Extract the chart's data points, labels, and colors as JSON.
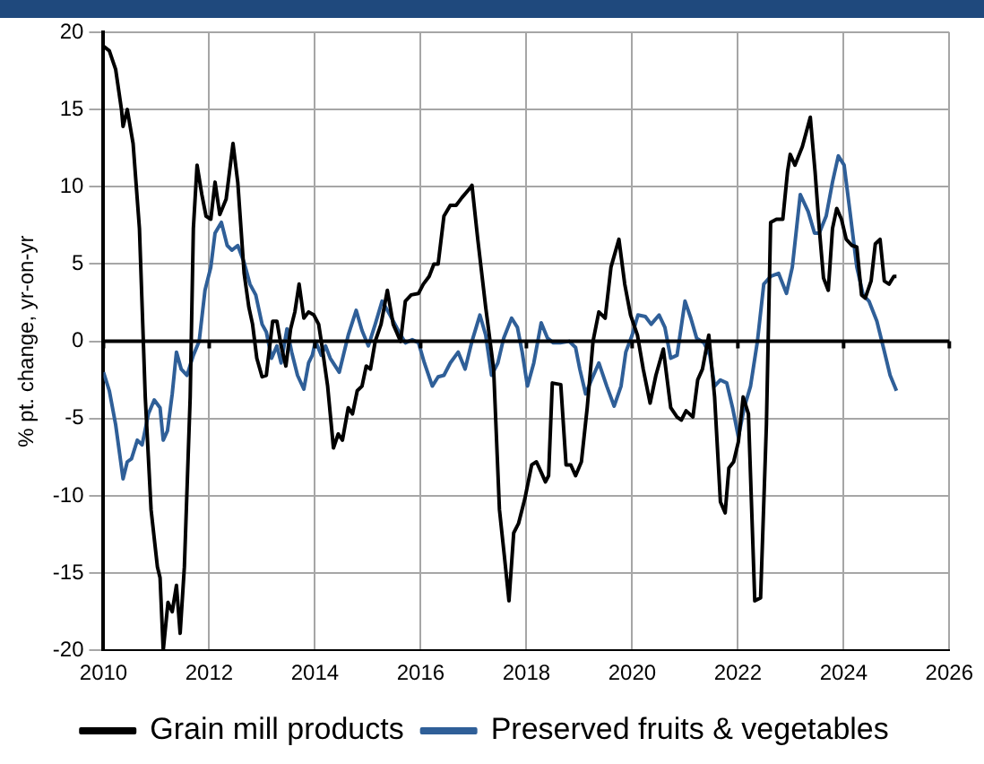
{
  "chart_data": {
    "type": "line",
    "ylabel": "% pt. change, yr-on-yr",
    "xlim": [
      2010,
      2026
    ],
    "xticks": [
      2010,
      2012,
      2014,
      2016,
      2018,
      2020,
      2022,
      2024,
      2026
    ],
    "ylim": [
      -20,
      20
    ],
    "yticks": [
      -20,
      -15,
      -10,
      -5,
      0,
      5,
      10,
      15,
      20
    ],
    "grid": true,
    "legend": "bottom",
    "line_style": "solid",
    "marker": "none",
    "ref_lines": [
      {
        "axis": "y",
        "value": 0,
        "color": "#000000"
      }
    ],
    "series": [
      {
        "name": "Grain mill products",
        "color": "#000000",
        "x": [
          2010.0,
          2010.11,
          2010.23,
          2010.34,
          2010.37,
          2010.45,
          2010.56,
          2010.68,
          2010.79,
          2010.9,
          2011.02,
          2011.07,
          2011.13,
          2011.22,
          2011.3,
          2011.38,
          2011.45,
          2011.53,
          2011.64,
          2011.7,
          2011.77,
          2011.86,
          2011.94,
          2012.03,
          2012.11,
          2012.2,
          2012.32,
          2012.45,
          2012.54,
          2012.66,
          2012.75,
          2012.82,
          2012.9,
          2013.0,
          2013.08,
          2013.2,
          2013.28,
          2013.36,
          2013.45,
          2013.54,
          2013.62,
          2013.7,
          2013.79,
          2013.88,
          2013.98,
          2014.07,
          2014.12,
          2014.24,
          2014.35,
          2014.44,
          2014.52,
          2014.63,
          2014.71,
          2014.8,
          2014.89,
          2014.97,
          2015.05,
          2015.14,
          2015.25,
          2015.37,
          2015.48,
          2015.62,
          2015.71,
          2015.82,
          2015.96,
          2016.05,
          2016.16,
          2016.25,
          2016.33,
          2016.44,
          2016.56,
          2016.67,
          2016.78,
          2016.93,
          2016.97,
          2017.08,
          2017.23,
          2017.38,
          2017.49,
          2017.58,
          2017.67,
          2017.76,
          2017.85,
          2017.97,
          2018.1,
          2018.19,
          2018.27,
          2018.36,
          2018.42,
          2018.49,
          2018.65,
          2018.75,
          2018.84,
          2018.93,
          2019.04,
          2019.15,
          2019.26,
          2019.37,
          2019.49,
          2019.6,
          2019.75,
          2019.86,
          2019.97,
          2020.1,
          2020.21,
          2020.34,
          2020.45,
          2020.59,
          2020.73,
          2020.85,
          2020.93,
          2021.02,
          2021.15,
          2021.24,
          2021.33,
          2021.45,
          2021.56,
          2021.67,
          2021.76,
          2021.83,
          2021.92,
          2022.01,
          2022.1,
          2022.2,
          2022.32,
          2022.43,
          2022.54,
          2022.62,
          2022.73,
          2022.85,
          2022.94,
          2022.99,
          2023.08,
          2023.22,
          2023.37,
          2023.46,
          2023.54,
          2023.62,
          2023.71,
          2023.79,
          2023.87,
          2023.96,
          2024.05,
          2024.16,
          2024.25,
          2024.34,
          2024.41,
          2024.52,
          2024.6,
          2024.69,
          2024.77,
          2024.86,
          2024.95,
          2025.0
        ],
        "values": [
          19.1,
          18.8,
          17.6,
          15.0,
          13.9,
          15.0,
          12.8,
          7.3,
          -3.6,
          -10.9,
          -14.6,
          -15.3,
          -20.0,
          -16.9,
          -17.5,
          -15.8,
          -18.9,
          -14.6,
          -3.6,
          7.3,
          11.4,
          9.5,
          8.1,
          7.9,
          10.3,
          8.2,
          9.2,
          12.8,
          10.3,
          4.4,
          2.2,
          1.1,
          -1.1,
          -2.3,
          -2.2,
          1.3,
          1.3,
          -0.3,
          -1.6,
          0.8,
          1.9,
          3.7,
          1.5,
          1.9,
          1.7,
          1.1,
          0.0,
          -2.9,
          -6.9,
          -6.0,
          -6.4,
          -4.3,
          -4.7,
          -3.2,
          -2.9,
          -1.6,
          -1.8,
          0.0,
          1.1,
          3.3,
          1.1,
          0.0,
          2.6,
          3.0,
          3.1,
          3.7,
          4.2,
          5.0,
          5.0,
          8.1,
          8.8,
          8.8,
          9.3,
          9.9,
          10.1,
          6.6,
          2.2,
          -1.8,
          -10.9,
          -13.8,
          -16.8,
          -12.4,
          -11.8,
          -10.2,
          -8.0,
          -7.8,
          -8.4,
          -9.1,
          -8.7,
          -2.7,
          -2.8,
          -8.0,
          -8.0,
          -8.7,
          -7.8,
          -4.3,
          0.0,
          1.9,
          1.5,
          4.8,
          6.6,
          3.7,
          1.7,
          0.4,
          -1.8,
          -4.0,
          -2.2,
          -0.5,
          -4.3,
          -4.9,
          -5.1,
          -4.5,
          -4.9,
          -2.5,
          -1.8,
          0.4,
          -3.6,
          -10.4,
          -11.1,
          -8.2,
          -7.8,
          -6.5,
          -3.6,
          -4.7,
          -16.8,
          -16.6,
          -5.4,
          7.7,
          7.9,
          7.9,
          11.0,
          12.1,
          11.4,
          12.6,
          14.5,
          11.0,
          7.3,
          4.1,
          3.3,
          7.3,
          8.6,
          7.9,
          6.6,
          6.2,
          6.1,
          3.0,
          2.8,
          3.9,
          6.3,
          6.6,
          3.9,
          3.7,
          4.2,
          4.2
        ]
      },
      {
        "name": "Preserved fruits & vegetables",
        "color": "#2f5f98",
        "x": [
          2010.0,
          2010.11,
          2010.23,
          2010.37,
          2010.45,
          2010.53,
          2010.64,
          2010.73,
          2010.85,
          2010.96,
          2011.07,
          2011.13,
          2011.21,
          2011.3,
          2011.38,
          2011.47,
          2011.58,
          2011.7,
          2011.81,
          2011.92,
          2012.03,
          2012.11,
          2012.23,
          2012.34,
          2012.43,
          2012.54,
          2012.66,
          2012.77,
          2012.88,
          2013.0,
          2013.08,
          2013.18,
          2013.28,
          2013.36,
          2013.47,
          2013.56,
          2013.67,
          2013.79,
          2013.88,
          2013.95,
          2014.01,
          2014.12,
          2014.2,
          2014.29,
          2014.46,
          2014.63,
          2014.78,
          2014.89,
          2015.01,
          2015.14,
          2015.27,
          2015.42,
          2015.59,
          2015.71,
          2015.84,
          2015.96,
          2016.07,
          2016.22,
          2016.33,
          2016.44,
          2016.56,
          2016.71,
          2016.84,
          2016.97,
          2017.12,
          2017.23,
          2017.34,
          2017.46,
          2017.57,
          2017.72,
          2017.83,
          2017.92,
          2018.02,
          2018.14,
          2018.28,
          2018.4,
          2018.51,
          2018.64,
          2018.81,
          2018.93,
          2019.01,
          2019.12,
          2019.23,
          2019.37,
          2019.52,
          2019.66,
          2019.79,
          2019.88,
          2020.0,
          2020.11,
          2020.25,
          2020.36,
          2020.51,
          2020.62,
          2020.73,
          2020.85,
          2021.0,
          2021.11,
          2021.22,
          2021.36,
          2021.47,
          2021.56,
          2021.67,
          2021.79,
          2021.9,
          2022.01,
          2022.12,
          2022.24,
          2022.37,
          2022.49,
          2022.62,
          2022.77,
          2022.92,
          2023.03,
          2023.11,
          2023.18,
          2023.33,
          2023.45,
          2023.54,
          2023.67,
          2023.79,
          2023.9,
          2024.01,
          2024.12,
          2024.25,
          2024.37,
          2024.48,
          2024.63,
          2024.76,
          2024.88,
          2025.0
        ],
        "values": [
          -2.0,
          -3.2,
          -5.4,
          -8.9,
          -7.8,
          -7.6,
          -6.4,
          -6.7,
          -4.7,
          -3.8,
          -4.3,
          -6.4,
          -5.8,
          -3.4,
          -0.7,
          -1.8,
          -2.2,
          -0.9,
          0.0,
          3.3,
          4.8,
          7.0,
          7.7,
          6.2,
          5.9,
          6.2,
          5.1,
          3.7,
          3.0,
          1.1,
          0.6,
          -1.1,
          -0.3,
          -1.4,
          0.8,
          -0.7,
          -2.2,
          -3.1,
          -1.4,
          -0.9,
          0.0,
          -0.9,
          -0.3,
          -1.1,
          -2.0,
          0.4,
          2.0,
          0.7,
          -0.3,
          1.1,
          2.6,
          1.7,
          0.6,
          -0.1,
          0.1,
          -0.1,
          -1.4,
          -2.9,
          -2.3,
          -2.2,
          -1.4,
          -0.7,
          -1.8,
          0.0,
          1.7,
          0.4,
          -2.2,
          -1.4,
          0.2,
          1.5,
          0.9,
          -0.7,
          -2.9,
          -1.4,
          1.2,
          0.2,
          -0.1,
          -0.1,
          0.0,
          -0.4,
          -1.8,
          -3.4,
          -2.5,
          -1.4,
          -2.9,
          -4.2,
          -2.9,
          -0.7,
          0.4,
          1.7,
          1.6,
          1.1,
          1.7,
          0.9,
          -1.1,
          -0.9,
          2.6,
          1.5,
          0.2,
          -0.1,
          -0.9,
          -2.9,
          -2.5,
          -2.7,
          -4.3,
          -6.2,
          -4.3,
          -2.9,
          0.0,
          3.7,
          4.2,
          4.4,
          3.1,
          4.8,
          7.3,
          9.5,
          8.4,
          7.0,
          7.0,
          8.1,
          10.3,
          12.0,
          11.4,
          8.4,
          4.8,
          3.0,
          2.6,
          1.3,
          -0.5,
          -2.2,
          -3.2
        ]
      }
    ]
  }
}
